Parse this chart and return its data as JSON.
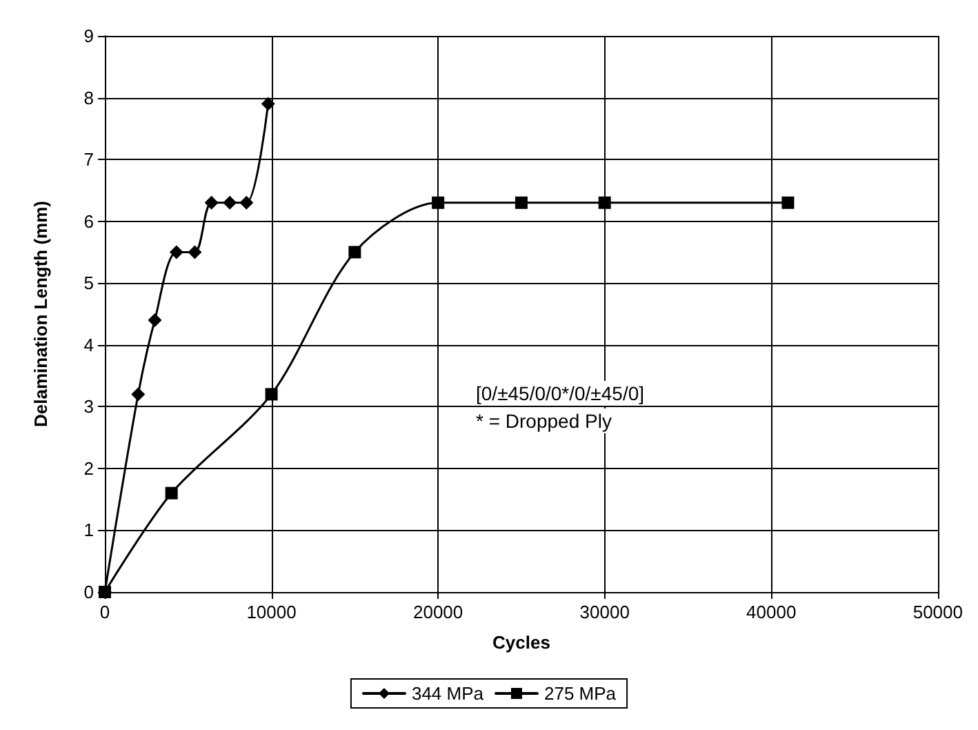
{
  "chart_data": {
    "type": "line",
    "xlabel": "Cycles",
    "ylabel": "Delamination Length (mm)",
    "xlim": [
      0,
      50000
    ],
    "xticks": [
      0,
      10000,
      20000,
      30000,
      40000,
      50000
    ],
    "ylim": [
      0,
      9
    ],
    "yticks": [
      0,
      1,
      2,
      3,
      4,
      5,
      6,
      7,
      8,
      9
    ],
    "grid": true,
    "legend": "bottom",
    "line_style": "solid",
    "series": [
      {
        "name": "344 MPa",
        "color": "#000000",
        "marker": "diamond",
        "x": [
          0,
          2000,
          3000,
          4300,
          5400,
          6400,
          7500,
          8500,
          9800
        ],
        "values": [
          0,
          3.2,
          4.4,
          5.5,
          5.5,
          6.3,
          6.3,
          6.3,
          7.9
        ]
      },
      {
        "name": "275 MPa",
        "color": "#000000",
        "marker": "square",
        "x": [
          0,
          4000,
          10000,
          15000,
          20000,
          25000,
          30000,
          41000
        ],
        "values": [
          0,
          1.6,
          3.2,
          5.5,
          6.3,
          6.3,
          6.3,
          6.3
        ]
      }
    ],
    "annotations": [
      "[0/±45/0/0*/0/±45/0]",
      "* = Dropped Ply"
    ]
  }
}
